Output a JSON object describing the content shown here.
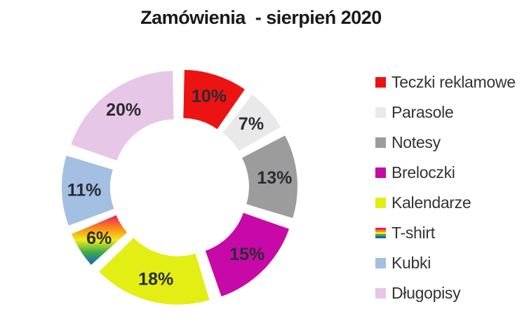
{
  "title": "Zamówienia  - sierpień 2020",
  "chart_data": {
    "type": "pie",
    "subtype": "exploded-doughnut",
    "title": "Zamówienia  - sierpień 2020",
    "categories": [
      "Teczki reklamowe",
      "Parasole",
      "Notesy",
      "Breloczki",
      "Kalendarze",
      "T-shirt",
      "Kubki",
      "Długopisy"
    ],
    "values": [
      10,
      7,
      13,
      15,
      18,
      6,
      11,
      20
    ],
    "unit": "%",
    "data_labels": [
      "10%",
      "7%",
      "13%",
      "15%",
      "18%",
      "6%",
      "11%",
      "20%"
    ],
    "colors": [
      "#ec1313",
      "#e9e9e9",
      "#9c9c9c",
      "#c709a7",
      "#e2ee14",
      "rainbow",
      "#a3bfe1",
      "#e6c7e7"
    ],
    "rainbow_stops": [
      "#ed1a67",
      "#f9861b",
      "#f2ec19",
      "#3bac4a",
      "#1a5fc8"
    ],
    "start_angle_deg": 0,
    "direction": "clockwise",
    "legend_position": "right",
    "label_color": "#2b2b33",
    "background_color": "#ffffff"
  }
}
